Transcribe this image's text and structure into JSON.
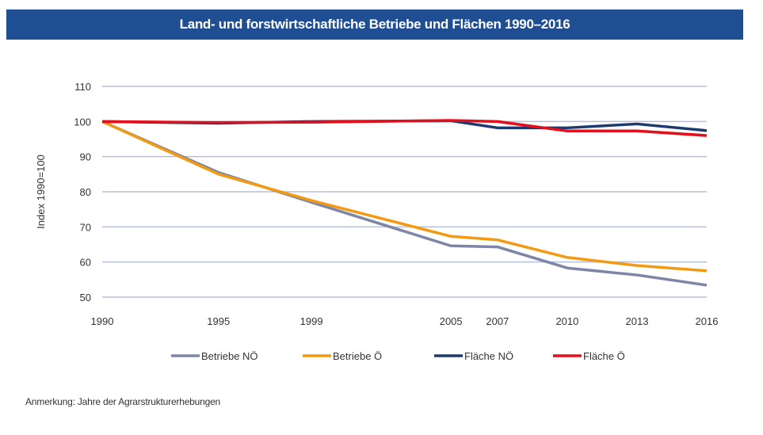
{
  "chart_data": {
    "type": "line",
    "title": "Land- und forstwirtschaftliche Betriebe und Flächen 1990–2016",
    "xlabel": "",
    "ylabel": "Index 1990=100",
    "x": [
      1990,
      1995,
      1999,
      2005,
      2007,
      2010,
      2013,
      2016
    ],
    "x_tick_labels": [
      "1990",
      "1995",
      "1999",
      "2005",
      "2007",
      "2010",
      "2013",
      "2016"
    ],
    "ylim": [
      50,
      110
    ],
    "y_ticks": [
      50,
      60,
      70,
      80,
      90,
      100,
      110
    ],
    "grid": true,
    "legend_position": "bottom",
    "series": [
      {
        "name": "Betriebe NÖ",
        "color": "#7d86a8",
        "values": [
          100,
          85.5,
          77,
          64.6,
          64.3,
          58.3,
          56.3,
          53.4
        ]
      },
      {
        "name": "Betriebe Ö",
        "color": "#f39a12",
        "values": [
          100,
          85,
          77.5,
          67.3,
          66.3,
          61.3,
          59,
          57.5
        ]
      },
      {
        "name": "Fläche NÖ",
        "color": "#1c3a6e",
        "values": [
          100,
          99.5,
          100,
          100.2,
          98.2,
          98.2,
          99.3,
          97.4
        ]
      },
      {
        "name": "Fläche Ö",
        "color": "#e3101c",
        "values": [
          100,
          99.7,
          99.8,
          100.3,
          100,
          97.3,
          97.3,
          96
        ]
      }
    ]
  },
  "note": "Anmerkung: Jahre der Agrarstrukturerhebungen"
}
